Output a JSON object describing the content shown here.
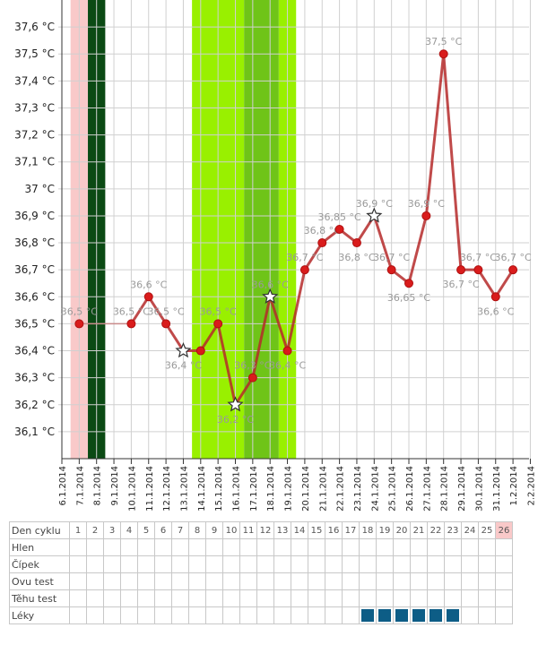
{
  "chart_data": {
    "type": "line",
    "x": [
      "6.1.2014",
      "7.1.2014",
      "8.1.2014",
      "9.1.2014",
      "10.1.2014",
      "11.1.2014",
      "12.1.2014",
      "13.1.2014",
      "14.1.2014",
      "15.1.2014",
      "16.1.2014",
      "17.1.2014",
      "18.1.2014",
      "19.1.2014",
      "20.1.2014",
      "21.1.2014",
      "22.1.2014",
      "23.1.2014",
      "24.1.2014",
      "25.1.2014",
      "26.1.2014",
      "27.1.2014",
      "28.1.2014",
      "29.1.2014",
      "30.1.2014",
      "31.1.2014",
      "1.2.2014",
      "2.2.2014"
    ],
    "y_ticks": [
      "36,1 °C",
      "36,2 °C",
      "36,3 °C",
      "36,4 °C",
      "36,5 °C",
      "36,6 °C",
      "36,7 °C",
      "36,8 °C",
      "36,9 °C",
      "37 °C",
      "37,1 °C",
      "37,2 °C",
      "37,3 °C",
      "37,4 °C",
      "37,5 °C",
      "37,6 °C"
    ],
    "ylim": [
      36.0,
      37.7
    ],
    "grid": true,
    "series": [
      {
        "color": "#b52a2a",
        "points": [
          {
            "date": "7.1.2014",
            "y": 36.5,
            "label": "36,5 °C"
          },
          {
            "date": "10.1.2014",
            "y": 36.5,
            "label": "36,5 °C"
          },
          {
            "date": "11.1.2014",
            "y": 36.6,
            "label": "36,6 °C"
          },
          {
            "date": "12.1.2014",
            "y": 36.5,
            "label": "36,5 °C"
          },
          {
            "date": "13.1.2014",
            "y": 36.4,
            "label": "36,4 °C",
            "star": true
          },
          {
            "date": "14.1.2014",
            "y": 36.4,
            "label": ""
          },
          {
            "date": "15.1.2014",
            "y": 36.5,
            "label": "36,5 °C"
          },
          {
            "date": "16.1.2014",
            "y": 36.2,
            "label": "36,2 °C",
            "star": true
          },
          {
            "date": "17.1.2014",
            "y": 36.3,
            "label": "36,3 °C"
          },
          {
            "date": "18.1.2014",
            "y": 36.6,
            "label": "36,6 °C",
            "star": true
          },
          {
            "date": "19.1.2014",
            "y": 36.4,
            "label": "36,4 °C"
          },
          {
            "date": "20.1.2014",
            "y": 36.7,
            "label": "36,7 °C"
          },
          {
            "date": "21.1.2014",
            "y": 36.8,
            "label": "36,8 °C"
          },
          {
            "date": "22.1.2014",
            "y": 36.85,
            "label": "36,85 °C"
          },
          {
            "date": "23.1.2014",
            "y": 36.8,
            "label": "36,8 °C"
          },
          {
            "date": "24.1.2014",
            "y": 36.9,
            "label": "36,9 °C",
            "star": true
          },
          {
            "date": "25.1.2014",
            "y": 36.7,
            "label": "36,7 °C"
          },
          {
            "date": "26.1.2014",
            "y": 36.65,
            "label": "36,65 °C"
          },
          {
            "date": "27.1.2014",
            "y": 36.9,
            "label": "36,9 °C"
          },
          {
            "date": "28.1.2014",
            "y": 37.5,
            "label": "37,5 °C"
          },
          {
            "date": "29.1.2014",
            "y": 36.7,
            "label": "36,7 °C"
          },
          {
            "date": "30.1.2014",
            "y": 36.7,
            "label": "36,7 °C"
          },
          {
            "date": "31.1.2014",
            "y": 36.6,
            "label": "36,6 °C"
          },
          {
            "date": "1.2.2014",
            "y": 36.7,
            "label": "36,7 °C"
          }
        ]
      }
    ],
    "bands": [
      {
        "from": "6.1.2014",
        "to": "7.1.2014",
        "color": "#f9c9c9"
      },
      {
        "from": "7.1.2014",
        "to": "8.1.2014",
        "color": "#0b4a14"
      },
      {
        "from": "13.1.2014",
        "to": "16.1.2014",
        "color": "#99f000"
      },
      {
        "from": "16.1.2014",
        "to": "18.1.2014",
        "color": "#6fc418"
      },
      {
        "from": "18.1.2014",
        "to": "19.1.2014",
        "color": "#99f000"
      }
    ]
  },
  "table": {
    "rows": [
      {
        "label": "Den cyklu",
        "cells": [
          "1",
          "2",
          "3",
          "4",
          "5",
          "6",
          "7",
          "8",
          "9",
          "10",
          "11",
          "12",
          "13",
          "14",
          "15",
          "16",
          "17",
          "18",
          "19",
          "20",
          "21",
          "22",
          "23",
          "24",
          "25",
          "26"
        ]
      },
      {
        "label": "Hlen",
        "cells": []
      },
      {
        "label": "Čípek",
        "cells": []
      },
      {
        "label": "Ovu test",
        "cells": []
      },
      {
        "label": "Těhu test",
        "cells": []
      },
      {
        "label": "Léky",
        "cells": [],
        "med_days": [
          18,
          19,
          20,
          21,
          22,
          23
        ]
      }
    ],
    "today_index": 26
  }
}
